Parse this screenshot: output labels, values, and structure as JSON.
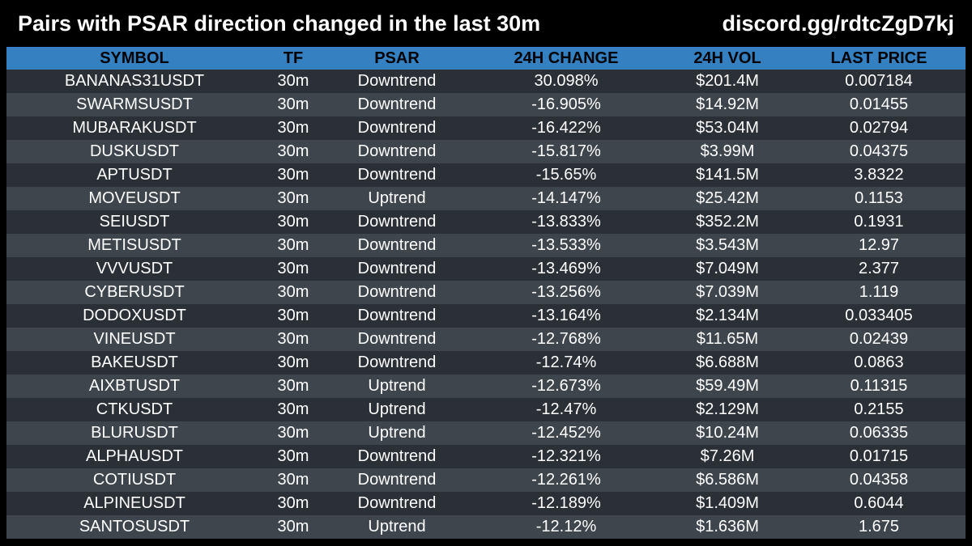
{
  "header": {
    "title": "Pairs with PSAR direction changed in the last 30m",
    "link": "discord.gg/rdtcZgD7kj"
  },
  "colors": {
    "background": "#000000",
    "header_row": "#3580c0",
    "row_dark": "#2b2f36",
    "row_light": "#3f454d",
    "text": "#ffffff"
  },
  "table": {
    "columns": [
      "SYMBOL",
      "TF",
      "PSAR",
      "24H CHANGE",
      "24H VOL",
      "LAST PRICE"
    ],
    "rows": [
      [
        "BANANAS31USDT",
        "30m",
        "Downtrend",
        "30.098%",
        "$201.4M",
        "0.007184"
      ],
      [
        "SWARMSUSDT",
        "30m",
        "Downtrend",
        "-16.905%",
        "$14.92M",
        "0.01455"
      ],
      [
        "MUBARAKUSDT",
        "30m",
        "Downtrend",
        "-16.422%",
        "$53.04M",
        "0.02794"
      ],
      [
        "DUSKUSDT",
        "30m",
        "Downtrend",
        "-15.817%",
        "$3.99M",
        "0.04375"
      ],
      [
        "APTUSDT",
        "30m",
        "Downtrend",
        "-15.65%",
        "$141.5M",
        "3.8322"
      ],
      [
        "MOVEUSDT",
        "30m",
        "Uptrend",
        "-14.147%",
        "$25.42M",
        "0.1153"
      ],
      [
        "SEIUSDT",
        "30m",
        "Downtrend",
        "-13.833%",
        "$352.2M",
        "0.1931"
      ],
      [
        "METISUSDT",
        "30m",
        "Downtrend",
        "-13.533%",
        "$3.543M",
        "12.97"
      ],
      [
        "VVVUSDT",
        "30m",
        "Downtrend",
        "-13.469%",
        "$7.049M",
        "2.377"
      ],
      [
        "CYBERUSDT",
        "30m",
        "Downtrend",
        "-13.256%",
        "$7.039M",
        "1.119"
      ],
      [
        "DODOXUSDT",
        "30m",
        "Downtrend",
        "-13.164%",
        "$2.134M",
        "0.033405"
      ],
      [
        "VINEUSDT",
        "30m",
        "Downtrend",
        "-12.768%",
        "$11.65M",
        "0.02439"
      ],
      [
        "BAKEUSDT",
        "30m",
        "Downtrend",
        "-12.74%",
        "$6.688M",
        "0.0863"
      ],
      [
        "AIXBTUSDT",
        "30m",
        "Uptrend",
        "-12.673%",
        "$59.49M",
        "0.11315"
      ],
      [
        "CTKUSDT",
        "30m",
        "Uptrend",
        "-12.47%",
        "$2.129M",
        "0.2155"
      ],
      [
        "BLURUSDT",
        "30m",
        "Uptrend",
        "-12.452%",
        "$10.24M",
        "0.06335"
      ],
      [
        "ALPHAUSDT",
        "30m",
        "Downtrend",
        "-12.321%",
        "$7.26M",
        "0.01715"
      ],
      [
        "COTIUSDT",
        "30m",
        "Downtrend",
        "-12.261%",
        "$6.586M",
        "0.04358"
      ],
      [
        "ALPINEUSDT",
        "30m",
        "Downtrend",
        "-12.189%",
        "$1.409M",
        "0.6044"
      ],
      [
        "SANTOSUSDT",
        "30m",
        "Uptrend",
        "-12.12%",
        "$1.636M",
        "1.675"
      ]
    ]
  }
}
